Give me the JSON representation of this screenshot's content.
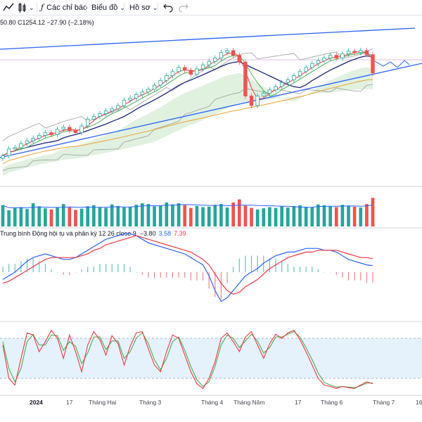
{
  "toolbar": {
    "indicators_label": "Các chỉ báo",
    "chart_label": "Biểu đồ",
    "profile_label": "Hồ sơ"
  },
  "legend": {
    "price_text": "50.80  C1254.12  −27.90 (−2.18%)",
    "macd_name": "Trung bình Động hội tụ và phân kỳ 12 26 close 9",
    "macd_hist": "−3.80",
    "macd_line": "3.58",
    "macd_signal": "7.39"
  },
  "colors": {
    "up": "#26a69a",
    "down": "#ef5350",
    "ma_fast": "#f23645",
    "ma_mid": "#4caf50",
    "ma_slow": "#1a237e",
    "ma_long": "#f0a030",
    "trendline": "#2962ff",
    "bands": "#9e9e9e",
    "macd": "#2962ff",
    "macd_signal": "#f23645",
    "stoch_k": "#f23645",
    "stoch_d": "#4caf50",
    "stoch_band": "#d6e9f8"
  },
  "x_axis_labels": [
    "2024",
    "17",
    "Tháng Hai",
    "Tháng 3",
    "Tháng 4",
    "Tháng Năm",
    "17",
    "Tháng 6",
    "Tháng 7",
    "16"
  ],
  "chart_data": [
    {
      "type": "line",
      "panel": "price",
      "series": [
        {
          "name": "Close",
          "values": [
            1132,
            1142,
            1144,
            1150,
            1154,
            1158,
            1162,
            1166,
            1163,
            1171,
            1174,
            1169,
            1166,
            1176,
            1186,
            1190,
            1194,
            1198,
            1201,
            1206,
            1214,
            1217,
            1222,
            1226,
            1230,
            1236,
            1243,
            1250,
            1256,
            1262,
            1258,
            1252,
            1260,
            1266,
            1271,
            1276,
            1284,
            1287,
            1280,
            1270,
            1220,
            1206,
            1220,
            1224,
            1229,
            1234,
            1240,
            1244,
            1250,
            1256,
            1262,
            1268,
            1272,
            1276,
            1280,
            1276,
            1282,
            1286,
            1284,
            1287,
            1281,
            1254
          ]
        }
      ]
    },
    {
      "type": "bar",
      "panel": "volume",
      "values": [
        55,
        42,
        48,
        50,
        45,
        60,
        52,
        47,
        44,
        50,
        58,
        49,
        43,
        46,
        52,
        55,
        50,
        48,
        57,
        53,
        49,
        51,
        56,
        60,
        58,
        52,
        54,
        62,
        57,
        60,
        55,
        48,
        53,
        50,
        51,
        56,
        58,
        49,
        62,
        70,
        54,
        48,
        44,
        47,
        50,
        48,
        52,
        49,
        53,
        55,
        51,
        50,
        57,
        55,
        52,
        50,
        56,
        53,
        51,
        49,
        58,
        74
      ]
    },
    {
      "type": "line",
      "panel": "macd",
      "series": [
        {
          "name": "MACD",
          "values": [
            -4,
            -2,
            0,
            3,
            6,
            8,
            9,
            10,
            9,
            8,
            7,
            7,
            8,
            10,
            12,
            14,
            16,
            18,
            19,
            20,
            21,
            21,
            20,
            18,
            16,
            15,
            14,
            13,
            12,
            11,
            10,
            8,
            6,
            4,
            -2,
            -10,
            -16,
            -14,
            -10,
            -6,
            -2,
            0,
            2,
            5,
            7,
            9,
            10,
            11,
            11,
            12,
            13,
            13,
            13,
            12,
            12,
            11,
            9,
            7,
            6,
            5,
            4,
            3.58
          ]
        },
        {
          "name": "Signal",
          "values": [
            -6,
            -5,
            -3,
            -1,
            1,
            3,
            5,
            7,
            8,
            8,
            8,
            8,
            8,
            9,
            10,
            12,
            13,
            15,
            16,
            17,
            18,
            19,
            20,
            19,
            18,
            17,
            16,
            15,
            14,
            13,
            12,
            11,
            9,
            7,
            4,
            -1,
            -6,
            -10,
            -12,
            -11,
            -8,
            -6,
            -4,
            -1,
            2,
            4,
            6,
            8,
            9,
            10,
            11,
            11,
            12,
            12,
            12,
            12,
            11,
            10,
            9,
            8,
            8,
            7.39
          ]
        }
      ]
    },
    {
      "type": "line",
      "panel": "stochastic",
      "ylim": [
        0,
        100
      ],
      "series": [
        {
          "name": "%K",
          "values": [
            70,
            20,
            10,
            50,
            88,
            85,
            60,
            75,
            92,
            80,
            50,
            85,
            60,
            30,
            70,
            90,
            78,
            55,
            84,
            72,
            40,
            68,
            88,
            90,
            64,
            40,
            30,
            60,
            85,
            80,
            55,
            30,
            12,
            5,
            20,
            45,
            80,
            88,
            75,
            60,
            82,
            90,
            70,
            50,
            72,
            86,
            80,
            88,
            92,
            78,
            60,
            40,
            20,
            10,
            8,
            5,
            8,
            6,
            5,
            10,
            15,
            12
          ]
        },
        {
          "name": "%D",
          "values": [
            75,
            35,
            15,
            35,
            75,
            86,
            70,
            70,
            85,
            84,
            62,
            75,
            68,
            42,
            58,
            82,
            82,
            63,
            76,
            76,
            50,
            60,
            80,
            88,
            72,
            48,
            33,
            50,
            75,
            82,
            62,
            38,
            18,
            8,
            15,
            38,
            70,
            85,
            80,
            66,
            76,
            86,
            76,
            58,
            66,
            82,
            82,
            86,
            90,
            82,
            66,
            48,
            28,
            14,
            10,
            7,
            8,
            7,
            6,
            9,
            13,
            13
          ]
        }
      ]
    }
  ]
}
